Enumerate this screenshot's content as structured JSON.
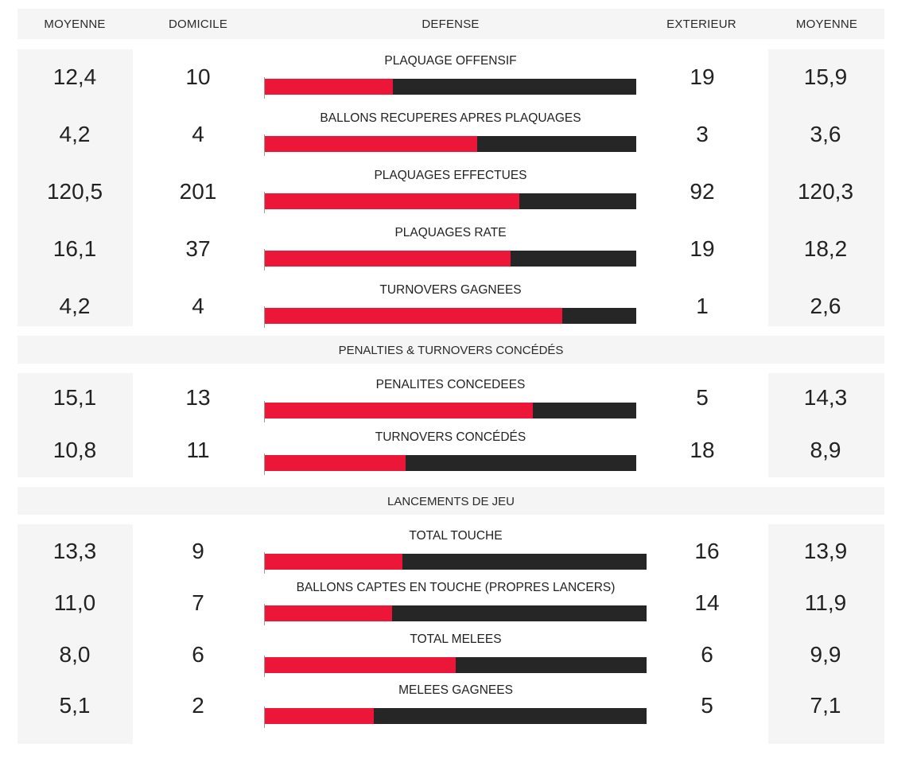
{
  "headers": {
    "avg_left": "MOYENNE",
    "home": "DOMICILE",
    "defense": "DEFENSE",
    "away": "EXTERIEUR",
    "avg_right": "MOYENNE"
  },
  "colors": {
    "home": "#ec1639",
    "away": "#262626",
    "panel": "#f5f5f5"
  },
  "defense": [
    {
      "label": "PLAQUAGE OFFENSIF",
      "avg_home": "12,4",
      "home": "10",
      "away": "19",
      "avg_away": "15,9",
      "home_share": 0.345
    },
    {
      "label": "BALLONS RECUPERES APRES PLAQUAGES",
      "avg_home": "4,2",
      "home": "4",
      "away": "3",
      "avg_away": "3,6",
      "home_share": 0.571
    },
    {
      "label": "PLAQUAGES EFFECTUES",
      "avg_home": "120,5",
      "home": "201",
      "away": "92",
      "avg_away": "120,3",
      "home_share": 0.686
    },
    {
      "label": "PLAQUAGES RATE",
      "avg_home": "16,1",
      "home": "37",
      "away": "19",
      "avg_away": "18,2",
      "home_share": 0.661
    },
    {
      "label": "TURNOVERS GAGNEES",
      "avg_home": "4,2",
      "home": "4",
      "away": "1",
      "avg_away": "2,6",
      "home_share": 0.8
    }
  ],
  "penalties_title": "PENALTIES & TURNOVERS CONCÉDÉS",
  "penalties": [
    {
      "label": "PENALITES CONCEDEES",
      "avg_home": "15,1",
      "home": "13",
      "away": "5",
      "avg_away": "14,3",
      "home_share": 0.722
    },
    {
      "label": "TURNOVERS CONCÉDÉS",
      "avg_home": "10,8",
      "home": "11",
      "away": "18",
      "avg_away": "8,9",
      "home_share": 0.379
    }
  ],
  "lineouts_title": "LANCEMENTS DE JEU",
  "lineouts": [
    {
      "label": "TOTAL TOUCHE",
      "avg_home": "13,3",
      "home": "9",
      "away": "16",
      "avg_away": "13,9",
      "home_share": 0.36
    },
    {
      "label": "BALLONS CAPTES EN TOUCHE (PROPRES LANCERS)",
      "avg_home": "11,0",
      "home": "7",
      "away": "14",
      "avg_away": "11,9",
      "home_share": 0.333
    },
    {
      "label": "TOTAL MELEES",
      "avg_home": "8,0",
      "home": "6",
      "away": "6",
      "avg_away": "9,9",
      "home_share": 0.5
    },
    {
      "label": "MELEES GAGNEES",
      "avg_home": "5,1",
      "home": "2",
      "away": "5",
      "avg_away": "7,1",
      "home_share": 0.286
    }
  ]
}
